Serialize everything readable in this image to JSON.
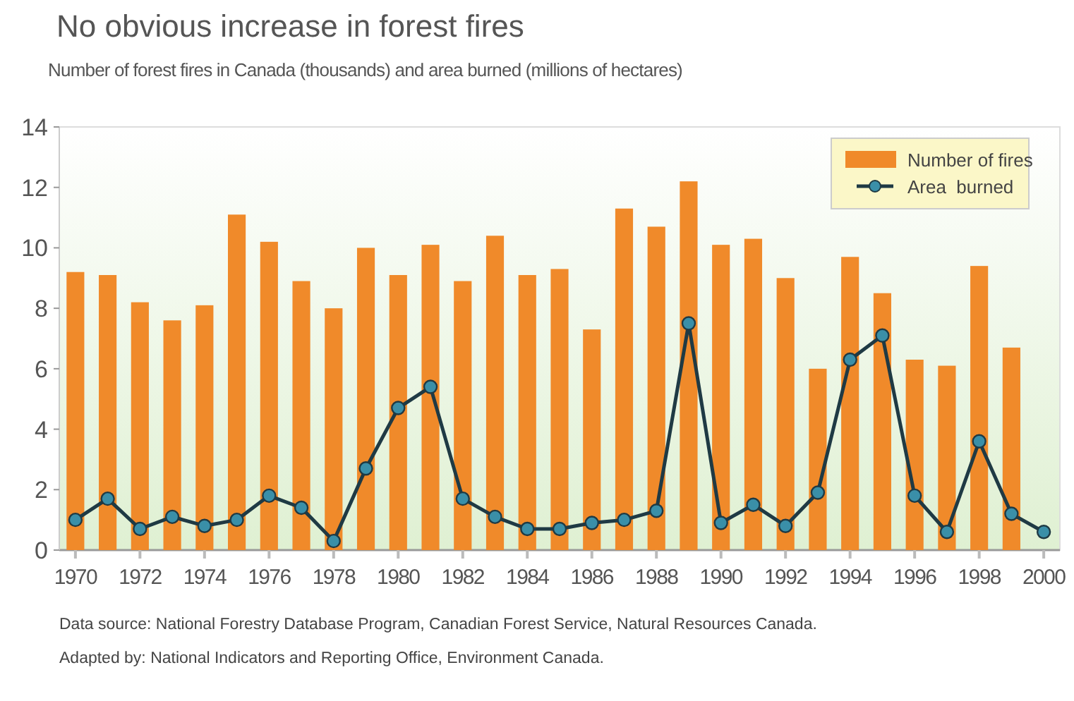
{
  "chart_data": {
    "type": "bar",
    "title": "No obvious increase in forest fires",
    "subtitle": "Number of forest fires in Canada (thousands) and area burned (millions of hectares)",
    "x": [
      1970,
      1971,
      1972,
      1973,
      1974,
      1975,
      1976,
      1977,
      1978,
      1979,
      1980,
      1981,
      1982,
      1983,
      1984,
      1985,
      1986,
      1987,
      1988,
      1989,
      1990,
      1991,
      1992,
      1993,
      1994,
      1995,
      1996,
      1997,
      1998,
      1999,
      2000
    ],
    "series": [
      {
        "name": "Number of fires",
        "color": "#f08a2a",
        "values": [
          9.2,
          9.1,
          8.2,
          7.6,
          8.1,
          11.1,
          10.2,
          8.9,
          8.0,
          10.0,
          9.1,
          10.1,
          8.9,
          10.4,
          9.1,
          9.3,
          7.3,
          11.3,
          10.7,
          12.2,
          10.1,
          10.3,
          9.0,
          6.0,
          9.7,
          8.5,
          6.3,
          6.1,
          9.4,
          6.7,
          null
        ]
      },
      {
        "name": "Area  burned",
        "type": "line",
        "color": "#1f3a44",
        "marker": "circle",
        "values": [
          1.0,
          1.7,
          0.7,
          1.1,
          0.8,
          1.0,
          1.8,
          1.4,
          0.3,
          2.7,
          4.7,
          5.4,
          1.7,
          1.1,
          0.7,
          0.7,
          0.9,
          1.0,
          1.3,
          7.5,
          0.9,
          1.5,
          0.8,
          1.9,
          6.3,
          7.1,
          1.8,
          0.6,
          3.6,
          1.2,
          0.6
        ]
      }
    ],
    "xlim": [
      1969.5,
      2000.5
    ],
    "xticks": [
      1970,
      1972,
      1974,
      1976,
      1978,
      1980,
      1982,
      1984,
      1986,
      1988,
      1990,
      1992,
      1994,
      1996,
      1998,
      2000
    ],
    "ylim": [
      0,
      14
    ],
    "yticks": [
      0,
      2,
      4,
      6,
      8,
      10,
      12,
      14
    ],
    "grid": false,
    "legend": "top right",
    "annotations": [
      "Data source: National Forestry Database Program, Canadian Forest Service, Natural Resources Canada.",
      "Adapted by: National Indicators and Reporting Office, Environment Canada."
    ]
  }
}
